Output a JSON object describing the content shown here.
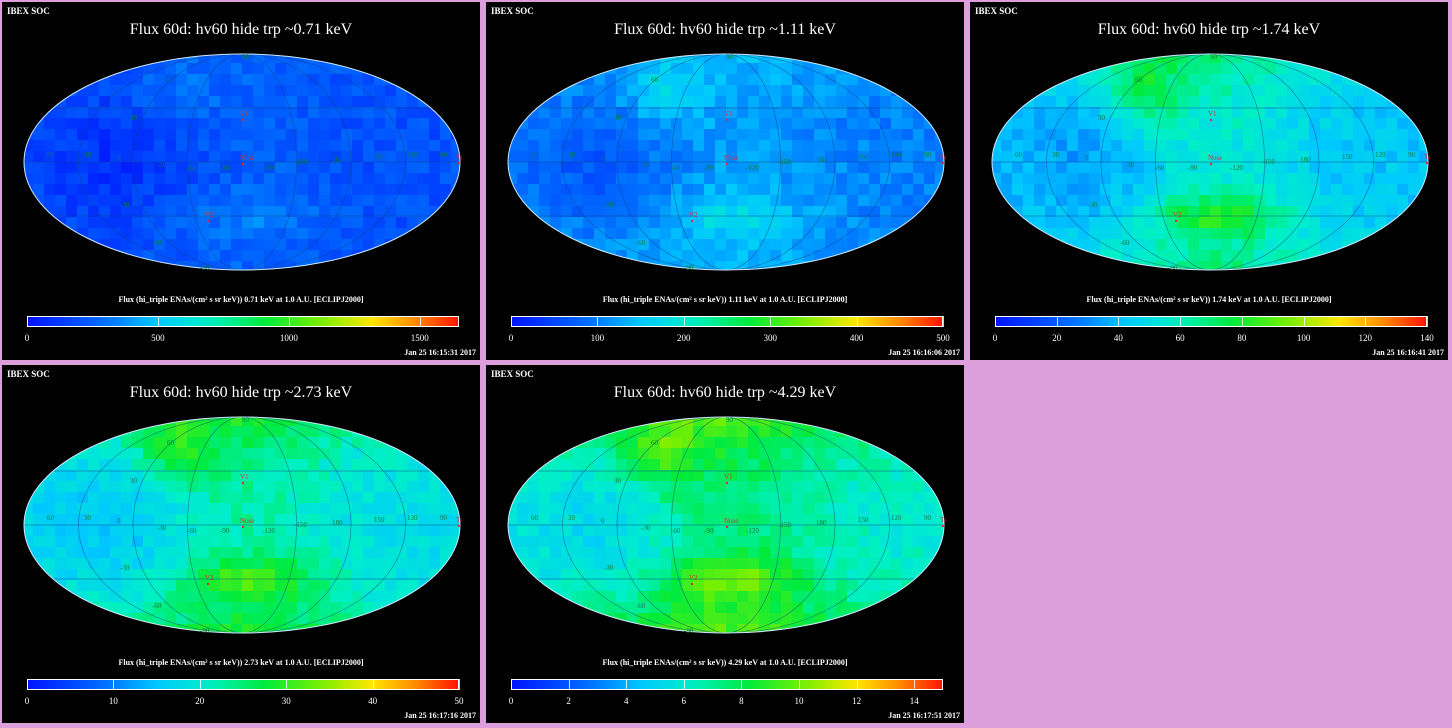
{
  "panels": [
    {
      "header": "IBEX SOC",
      "title": "Flux   60d: hv60 hide trp ~0.71 keV",
      "colorbar_label": "Flux (hi_triple ENAs/(cm² s sr keV))  0.71 keV at 1.0 A.U. [ECLIPJ2000]",
      "ticks": [
        "0",
        "500",
        "1000",
        "1500"
      ],
      "tick_values": [
        0,
        500,
        1000,
        1500
      ],
      "vmax": 1650,
      "timestamp": "Jan 25 16:15:31 2017",
      "intensity": 0.12,
      "hotspot": 0.05,
      "ribbon": 0.05
    },
    {
      "header": "IBEX SOC",
      "title": "Flux   60d: hv60 hide trp ~1.11 keV",
      "colorbar_label": "Flux (hi_triple ENAs/(cm² s sr keV))  1.11 keV at 1.0 A.U. [ECLIPJ2000]",
      "ticks": [
        "0",
        "100",
        "200",
        "300",
        "400",
        "500"
      ],
      "tick_values": [
        0,
        100,
        200,
        300,
        400,
        500
      ],
      "vmax": 500,
      "timestamp": "Jan 25 16:16:06 2017",
      "intensity": 0.2,
      "hotspot": 0.08,
      "ribbon": 0.1
    },
    {
      "header": "IBEX SOC",
      "title": "Flux   60d: hv60 hide trp ~1.74 keV",
      "colorbar_label": "Flux (hi_triple ENAs/(cm² s sr keV))  1.74 keV at 1.0 A.U. [ECLIPJ2000]",
      "ticks": [
        "0",
        "20",
        "40",
        "60",
        "80",
        "100",
        "120",
        "140"
      ],
      "tick_values": [
        0,
        20,
        40,
        60,
        80,
        100,
        120,
        140
      ],
      "vmax": 140,
      "timestamp": "Jan 25 16:16:41 2017",
      "intensity": 0.3,
      "hotspot": 0.15,
      "ribbon": 0.18
    },
    {
      "header": "IBEX SOC",
      "title": "Flux   60d: hv60 hide trp ~2.73 keV",
      "colorbar_label": "Flux (hi_triple ENAs/(cm² s sr keV))  2.73 keV at 1.0 A.U. [ECLIPJ2000]",
      "ticks": [
        "0",
        "10",
        "20",
        "30",
        "40",
        "50"
      ],
      "tick_values": [
        0,
        10,
        20,
        30,
        40,
        50
      ],
      "vmax": 50,
      "timestamp": "Jan 25 16:17:16 2017",
      "intensity": 0.36,
      "hotspot": 0.14,
      "ribbon": 0.16
    },
    {
      "header": "IBEX SOC",
      "title": "Flux   60d: hv60 hide trp ~4.29 keV",
      "colorbar_label": "Flux (hi_triple ENAs/(cm² s sr keV))  4.29 keV at 1.0 A.U. [ECLIPJ2000]",
      "ticks": [
        "0",
        "2",
        "4",
        "6",
        "8",
        "10",
        "12",
        "14"
      ],
      "tick_values": [
        0,
        2,
        4,
        6,
        8,
        10,
        12,
        14
      ],
      "vmax": 15,
      "timestamp": "Jan 25 16:17:51 2017",
      "intensity": 0.4,
      "hotspot": 0.15,
      "ribbon": 0.16
    }
  ],
  "map_labels": {
    "v1": "V1",
    "v2": "V2",
    "nose": "Nose",
    "tail": "Tail",
    "lon_labels": [
      "60",
      "30",
      "0",
      "-30",
      "-60",
      "-90",
      "-120",
      "-150",
      "180",
      "150",
      "120",
      "90"
    ],
    "lat_labels": [
      "60",
      "30",
      "-30",
      "-60",
      "-90",
      "90"
    ]
  },
  "colors": {
    "background": "#dd9fdc",
    "panel": "#000000",
    "marker": "#e03030",
    "grid": "#1a9a4a"
  },
  "chart_data": [
    {
      "type": "heatmap",
      "title": "Flux   60d: hv60 hide trp ~0.71 keV",
      "colorbar_range": [
        0,
        1650
      ],
      "ticks": [
        0,
        500,
        1000,
        1500
      ],
      "projection": "Mollweide all-sky"
    },
    {
      "type": "heatmap",
      "title": "Flux   60d: hv60 hide trp ~1.11 keV",
      "colorbar_range": [
        0,
        500
      ],
      "ticks": [
        0,
        100,
        200,
        300,
        400,
        500
      ],
      "projection": "Mollweide all-sky"
    },
    {
      "type": "heatmap",
      "title": "Flux   60d: hv60 hide trp ~1.74 keV",
      "colorbar_range": [
        0,
        140
      ],
      "ticks": [
        0,
        20,
        40,
        60,
        80,
        100,
        120,
        140
      ],
      "projection": "Mollweide all-sky"
    },
    {
      "type": "heatmap",
      "title": "Flux   60d: hv60 hide trp ~2.73 keV",
      "colorbar_range": [
        0,
        50
      ],
      "ticks": [
        0,
        10,
        20,
        30,
        40,
        50
      ],
      "projection": "Mollweide all-sky"
    },
    {
      "type": "heatmap",
      "title": "Flux   60d: hv60 hide trp ~4.29 keV",
      "colorbar_range": [
        0,
        15
      ],
      "ticks": [
        0,
        2,
        4,
        6,
        8,
        10,
        12,
        14
      ],
      "projection": "Mollweide all-sky"
    }
  ]
}
